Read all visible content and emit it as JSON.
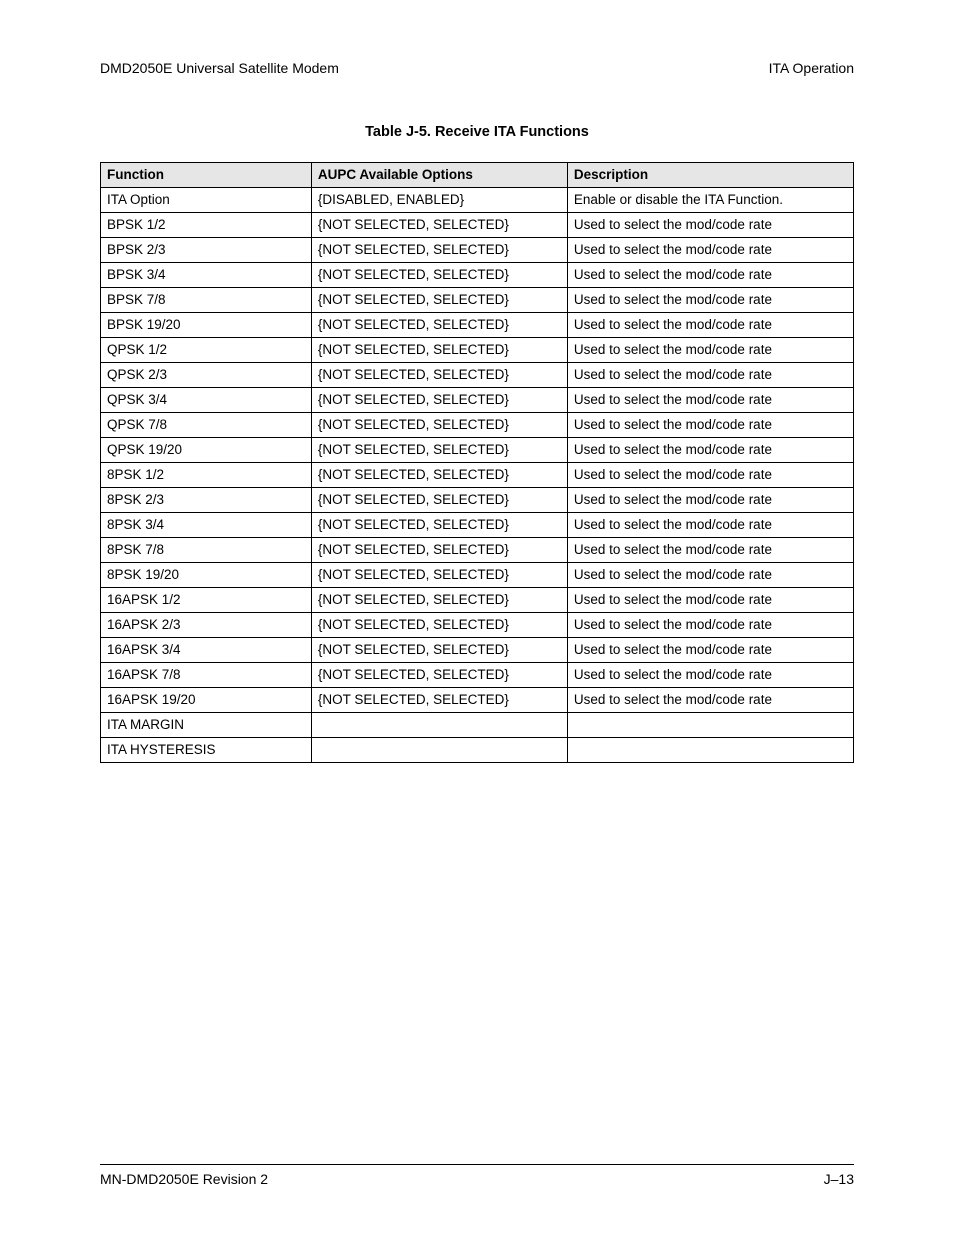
{
  "header": {
    "left": "DMD2050E Universal Satellite Modem",
    "right": "ITA Operation"
  },
  "title": "Table J-5. Receive ITA Functions",
  "table": {
    "columns": [
      "Function",
      "AUPC Available Options",
      "Description"
    ],
    "rows": [
      [
        "ITA Option",
        "{DISABLED, ENABLED}",
        "Enable or disable the ITA Function."
      ],
      [
        "BPSK 1/2",
        "{NOT SELECTED, SELECTED}",
        "Used to select the mod/code rate"
      ],
      [
        "BPSK 2/3",
        "{NOT SELECTED, SELECTED}",
        "Used to select the mod/code rate"
      ],
      [
        "BPSK 3/4",
        "{NOT SELECTED, SELECTED}",
        "Used to select the mod/code rate"
      ],
      [
        "BPSK 7/8",
        "{NOT SELECTED, SELECTED}",
        "Used to select the mod/code rate"
      ],
      [
        "BPSK 19/20",
        "{NOT SELECTED, SELECTED}",
        "Used to select the mod/code rate"
      ],
      [
        "QPSK 1/2",
        "{NOT SELECTED, SELECTED}",
        "Used to select the mod/code rate"
      ],
      [
        "QPSK 2/3",
        "{NOT SELECTED, SELECTED}",
        "Used to select the mod/code rate"
      ],
      [
        "QPSK 3/4",
        "{NOT SELECTED, SELECTED}",
        "Used to select the mod/code rate"
      ],
      [
        "QPSK 7/8",
        "{NOT SELECTED, SELECTED}",
        "Used to select the mod/code rate"
      ],
      [
        "QPSK 19/20",
        "{NOT SELECTED, SELECTED}",
        "Used to select the mod/code rate"
      ],
      [
        "8PSK 1/2",
        "{NOT SELECTED, SELECTED}",
        "Used to select the mod/code rate"
      ],
      [
        "8PSK 2/3",
        "{NOT SELECTED, SELECTED}",
        "Used to select the mod/code rate"
      ],
      [
        "8PSK 3/4",
        "{NOT SELECTED, SELECTED}",
        "Used to select the mod/code rate"
      ],
      [
        "8PSK 7/8",
        "{NOT SELECTED, SELECTED}",
        "Used to select the mod/code rate"
      ],
      [
        "8PSK 19/20",
        "{NOT SELECTED, SELECTED}",
        "Used to select the mod/code rate"
      ],
      [
        "16APSK 1/2",
        "{NOT SELECTED, SELECTED}",
        "Used to select the mod/code rate"
      ],
      [
        "16APSK 2/3",
        "{NOT SELECTED, SELECTED}",
        "Used to select the mod/code rate"
      ],
      [
        "16APSK 3/4",
        "{NOT SELECTED, SELECTED}",
        "Used to select the mod/code rate"
      ],
      [
        "16APSK 7/8",
        "{NOT SELECTED, SELECTED}",
        "Used to select the mod/code rate"
      ],
      [
        "16APSK 19/20",
        "{NOT SELECTED, SELECTED}",
        "Used to select the mod/code rate"
      ],
      [
        "ITA MARGIN",
        "",
        ""
      ],
      [
        "ITA HYSTERESIS",
        "",
        ""
      ]
    ]
  },
  "footer": {
    "left": "MN-DMD2050E   Revision 2",
    "right": "J–13"
  }
}
